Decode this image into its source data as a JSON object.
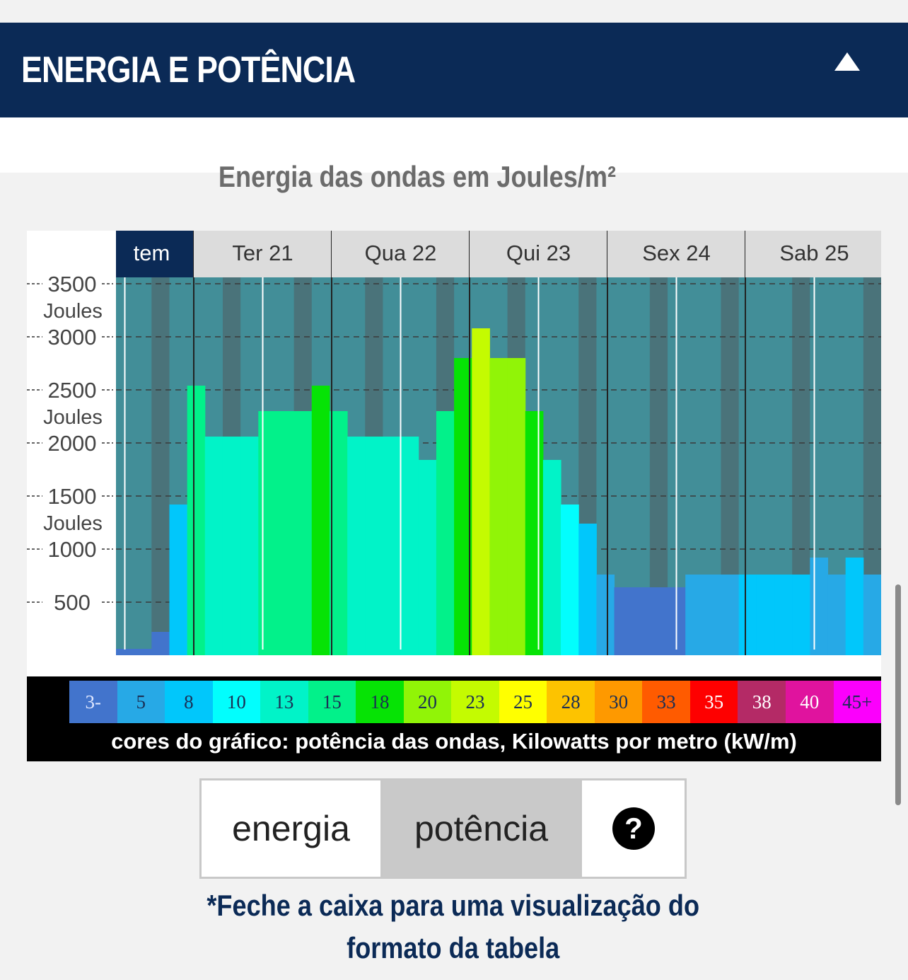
{
  "header": {
    "title": "ENERGIA E POTÊNCIA"
  },
  "icons": {
    "collapse": "triangle-up-icon",
    "help": "question-circle-icon"
  },
  "chart_data": {
    "type": "bar",
    "title": "Energia das ondas em Joules/m²",
    "y_ticks": [
      {
        "value": 3500,
        "label": "3500",
        "unit": "Joules"
      },
      {
        "value": 3000,
        "label": "3000",
        "unit": ""
      },
      {
        "value": 2500,
        "label": "2500",
        "unit": "Joules"
      },
      {
        "value": 2000,
        "label": "2000",
        "unit": ""
      },
      {
        "value": 1500,
        "label": "1500",
        "unit": "Joules"
      },
      {
        "value": 1000,
        "label": "1000",
        "unit": ""
      },
      {
        "value": 500,
        "label": "500",
        "unit": ""
      }
    ],
    "ylim": [
      0,
      3560
    ],
    "days": [
      {
        "label": "tem",
        "highlight": true
      },
      {
        "label": "Ter 21",
        "highlight": false
      },
      {
        "label": "Qua 22",
        "highlight": false
      },
      {
        "label": "Qui 23",
        "highlight": false
      },
      {
        "label": "Sex 24",
        "highlight": false
      },
      {
        "label": "Sab 25",
        "highlight": false
      }
    ],
    "bars": [
      {
        "energy": 60,
        "power": 3
      },
      {
        "energy": 60,
        "power": 3
      },
      {
        "energy": 220,
        "power": 3
      },
      {
        "energy": 1420,
        "power": 8
      },
      {
        "energy": 2540,
        "power": 15
      },
      {
        "energy": 2060,
        "power": 13
      },
      {
        "energy": 2060,
        "power": 13
      },
      {
        "energy": 2060,
        "power": 13
      },
      {
        "energy": 2300,
        "power": 15
      },
      {
        "energy": 2300,
        "power": 15
      },
      {
        "energy": 2300,
        "power": 15
      },
      {
        "energy": 2540,
        "power": 18
      },
      {
        "energy": 2300,
        "power": 15
      },
      {
        "energy": 2060,
        "power": 13
      },
      {
        "energy": 2060,
        "power": 13
      },
      {
        "energy": 2060,
        "power": 13
      },
      {
        "energy": 2060,
        "power": 13
      },
      {
        "energy": 1840,
        "power": 13
      },
      {
        "energy": 2300,
        "power": 15
      },
      {
        "energy": 2800,
        "power": 18
      },
      {
        "energy": 3080,
        "power": 23
      },
      {
        "energy": 2800,
        "power": 20
      },
      {
        "energy": 2800,
        "power": 20
      },
      {
        "energy": 2300,
        "power": 18
      },
      {
        "energy": 1840,
        "power": 13
      },
      {
        "energy": 1420,
        "power": 10
      },
      {
        "energy": 1240,
        "power": 8
      },
      {
        "energy": 760,
        "power": 5
      },
      {
        "energy": 640,
        "power": 3
      },
      {
        "energy": 640,
        "power": 3
      },
      {
        "energy": 640,
        "power": 3
      },
      {
        "energy": 640,
        "power": 3
      },
      {
        "energy": 760,
        "power": 5
      },
      {
        "energy": 760,
        "power": 5
      },
      {
        "energy": 760,
        "power": 5
      },
      {
        "energy": 760,
        "power": 8
      },
      {
        "energy": 760,
        "power": 8
      },
      {
        "energy": 760,
        "power": 8
      },
      {
        "energy": 760,
        "power": 8
      },
      {
        "energy": 920,
        "power": 5
      },
      {
        "energy": 760,
        "power": 5
      },
      {
        "energy": 920,
        "power": 8
      },
      {
        "energy": 760,
        "power": 5
      }
    ],
    "partial_first_bar": true,
    "grid": true
  },
  "legend": {
    "items": [
      {
        "label": "3-",
        "color": "#4274cc",
        "text_color": "#e0e8ff"
      },
      {
        "label": "5",
        "color": "#27a9e6",
        "text_color": "#1b2f55"
      },
      {
        "label": "8",
        "color": "#01c7fb",
        "text_color": "#1b2f55"
      },
      {
        "label": "10",
        "color": "#02fefd",
        "text_color": "#1b2f55"
      },
      {
        "label": "13",
        "color": "#01f3c8",
        "text_color": "#1b2f55"
      },
      {
        "label": "15",
        "color": "#02f18a",
        "text_color": "#1b2f55"
      },
      {
        "label": "18",
        "color": "#06e305",
        "text_color": "#1b2f55"
      },
      {
        "label": "20",
        "color": "#91f407",
        "text_color": "#1b2f55"
      },
      {
        "label": "23",
        "color": "#c4fb01",
        "text_color": "#1b2f55"
      },
      {
        "label": "25",
        "color": "#ffff00",
        "text_color": "#1b2f55"
      },
      {
        "label": "28",
        "color": "#fdc300",
        "text_color": "#1b2f55"
      },
      {
        "label": "30",
        "color": "#fe9900",
        "text_color": "#1b2f55"
      },
      {
        "label": "33",
        "color": "#ff5b00",
        "text_color": "#1b2f55"
      },
      {
        "label": "35",
        "color": "#fe0000",
        "text_color": "#ffffff"
      },
      {
        "label": "38",
        "color": "#b42a66",
        "text_color": "#ffffff"
      },
      {
        "label": "40",
        "color": "#e0139e",
        "text_color": "#ffffff"
      },
      {
        "label": "45+",
        "color": "#fb00fc",
        "text_color": "#1b2f55"
      }
    ],
    "caption": "cores do gráfico: potência das ondas, Kilowatts por metro (kW/m)"
  },
  "buttons": {
    "energia": "energia",
    "potencia": "potência",
    "selected": "potencia"
  },
  "note": {
    "line1": "*Feche a caixa para uma visualização do",
    "line2": "formato da tabela"
  },
  "colors": {
    "header_bg": "#0b2a56",
    "chart_day_bg": "#428e98",
    "chart_night_bg": "#4a737a",
    "day_header_bg": "#dcdcdc",
    "day_header_highlight": "#0b2a56"
  }
}
